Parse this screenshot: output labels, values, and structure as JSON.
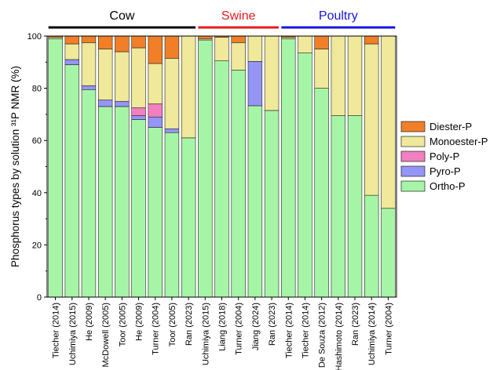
{
  "chart_data": {
    "type": "bar",
    "stacked": true,
    "title": "",
    "xlabel": "",
    "ylabel": "Phosphorus types by solution ³¹P NMR (%)",
    "ylim": [
      0,
      100
    ],
    "yticks": [
      0,
      20,
      40,
      60,
      80,
      100
    ],
    "grid": false,
    "legend_position": "right",
    "categories": [
      "Tiecher (2014)",
      "Uchimiya (2015)",
      "He (2009)",
      "McDowell (2005)",
      "Toor (2005)",
      "He (2009)",
      "Turner (2004)",
      "Toor (2005)",
      "Ran (2023)",
      "Uchimiya (2015)",
      "Liang (2018)",
      "Turner (2004)",
      "Jiang (2024)",
      "Ran (2023)",
      "Tiecher (2014)",
      "Tiecher (2014)",
      "De Souza (2012)",
      "Hashimoto (2014)",
      "Ran (2023)",
      "Uchimiya (2014)",
      "Turner (2004)"
    ],
    "groups": [
      {
        "name": "Cow",
        "start": 0,
        "end": 8,
        "color": "#000000"
      },
      {
        "name": "Swine",
        "start": 9,
        "end": 13,
        "color": "#e8191e"
      },
      {
        "name": "Poultry",
        "start": 14,
        "end": 20,
        "color": "#1515e0"
      }
    ],
    "series": [
      {
        "name": "Ortho-P",
        "color": "#a6f5a6",
        "values": [
          99.0,
          89.0,
          79.5,
          73.0,
          73.0,
          68.0,
          65.0,
          63.0,
          61.0,
          98.5,
          90.5,
          87.0,
          73.3,
          71.5,
          99.0,
          93.5,
          80.0,
          69.5,
          69.5,
          39.0,
          34.0
        ]
      },
      {
        "name": "Pyro-P",
        "color": "#9595f5",
        "values": [
          0,
          2.0,
          1.5,
          2.5,
          2.0,
          1.5,
          4.0,
          1.5,
          0,
          0,
          0,
          0,
          17.0,
          0,
          0,
          0,
          0,
          0,
          0,
          0,
          0
        ]
      },
      {
        "name": "Poly-P",
        "color": "#f27fc0",
        "values": [
          0,
          0,
          0,
          0,
          0,
          3.0,
          5.0,
          0,
          0,
          0,
          0,
          0,
          0,
          0,
          0,
          0,
          0,
          0,
          0,
          0,
          0
        ]
      },
      {
        "name": "Monoester-P",
        "color": "#f0e89a",
        "values": [
          0.5,
          6.0,
          16.5,
          19.5,
          19.0,
          23.0,
          15.5,
          27.0,
          39.0,
          0.5,
          9.0,
          10.5,
          9.7,
          28.5,
          0.5,
          6.5,
          15.0,
          30.5,
          30.5,
          58.0,
          66.0
        ]
      },
      {
        "name": "Diester-P",
        "color": "#f07f28",
        "values": [
          0.5,
          3.0,
          2.5,
          5.0,
          6.0,
          4.5,
          10.5,
          8.5,
          0,
          1.0,
          0.5,
          2.5,
          0,
          0,
          0.5,
          0,
          5.0,
          0,
          0,
          3.0,
          0
        ]
      }
    ],
    "legend_order": [
      "Diester-P",
      "Monoester-P",
      "Poly-P",
      "Pyro-P",
      "Ortho-P"
    ]
  }
}
